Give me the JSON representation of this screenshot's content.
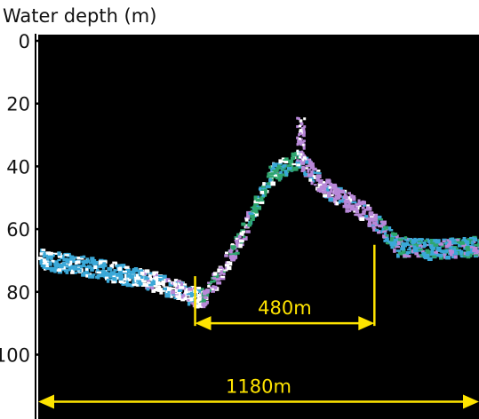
{
  "chart_data": {
    "type": "area",
    "title": "",
    "ylabel": "Water depth (m)",
    "xlabel": "",
    "ylim": [
      0,
      120
    ],
    "yticks": [
      "0",
      "20",
      "40",
      "60",
      "80",
      "100"
    ],
    "y_inverted": true,
    "grid": false,
    "background": "#000000",
    "x_extent_m": 1180,
    "profile": {
      "x": [
        0,
        150,
        300,
        395,
        440,
        520,
        620,
        690,
        760,
        880,
        960,
        1050,
        1180
      ],
      "y": [
        69,
        72,
        76,
        80,
        82,
        66,
        42,
        37,
        46,
        55,
        65,
        66,
        65
      ]
    },
    "colors": [
      "#3aa8d8",
      "#ffffff",
      "#b888d8",
      "#2fa66e"
    ],
    "annotations": [
      {
        "text": "480m",
        "from_m": 420,
        "to_m": 900,
        "depth_m": 90
      },
      {
        "text": "1180m",
        "from_m": 0,
        "to_m": 1180,
        "depth_m": 115
      }
    ],
    "annotation_color": "#ffe400"
  }
}
